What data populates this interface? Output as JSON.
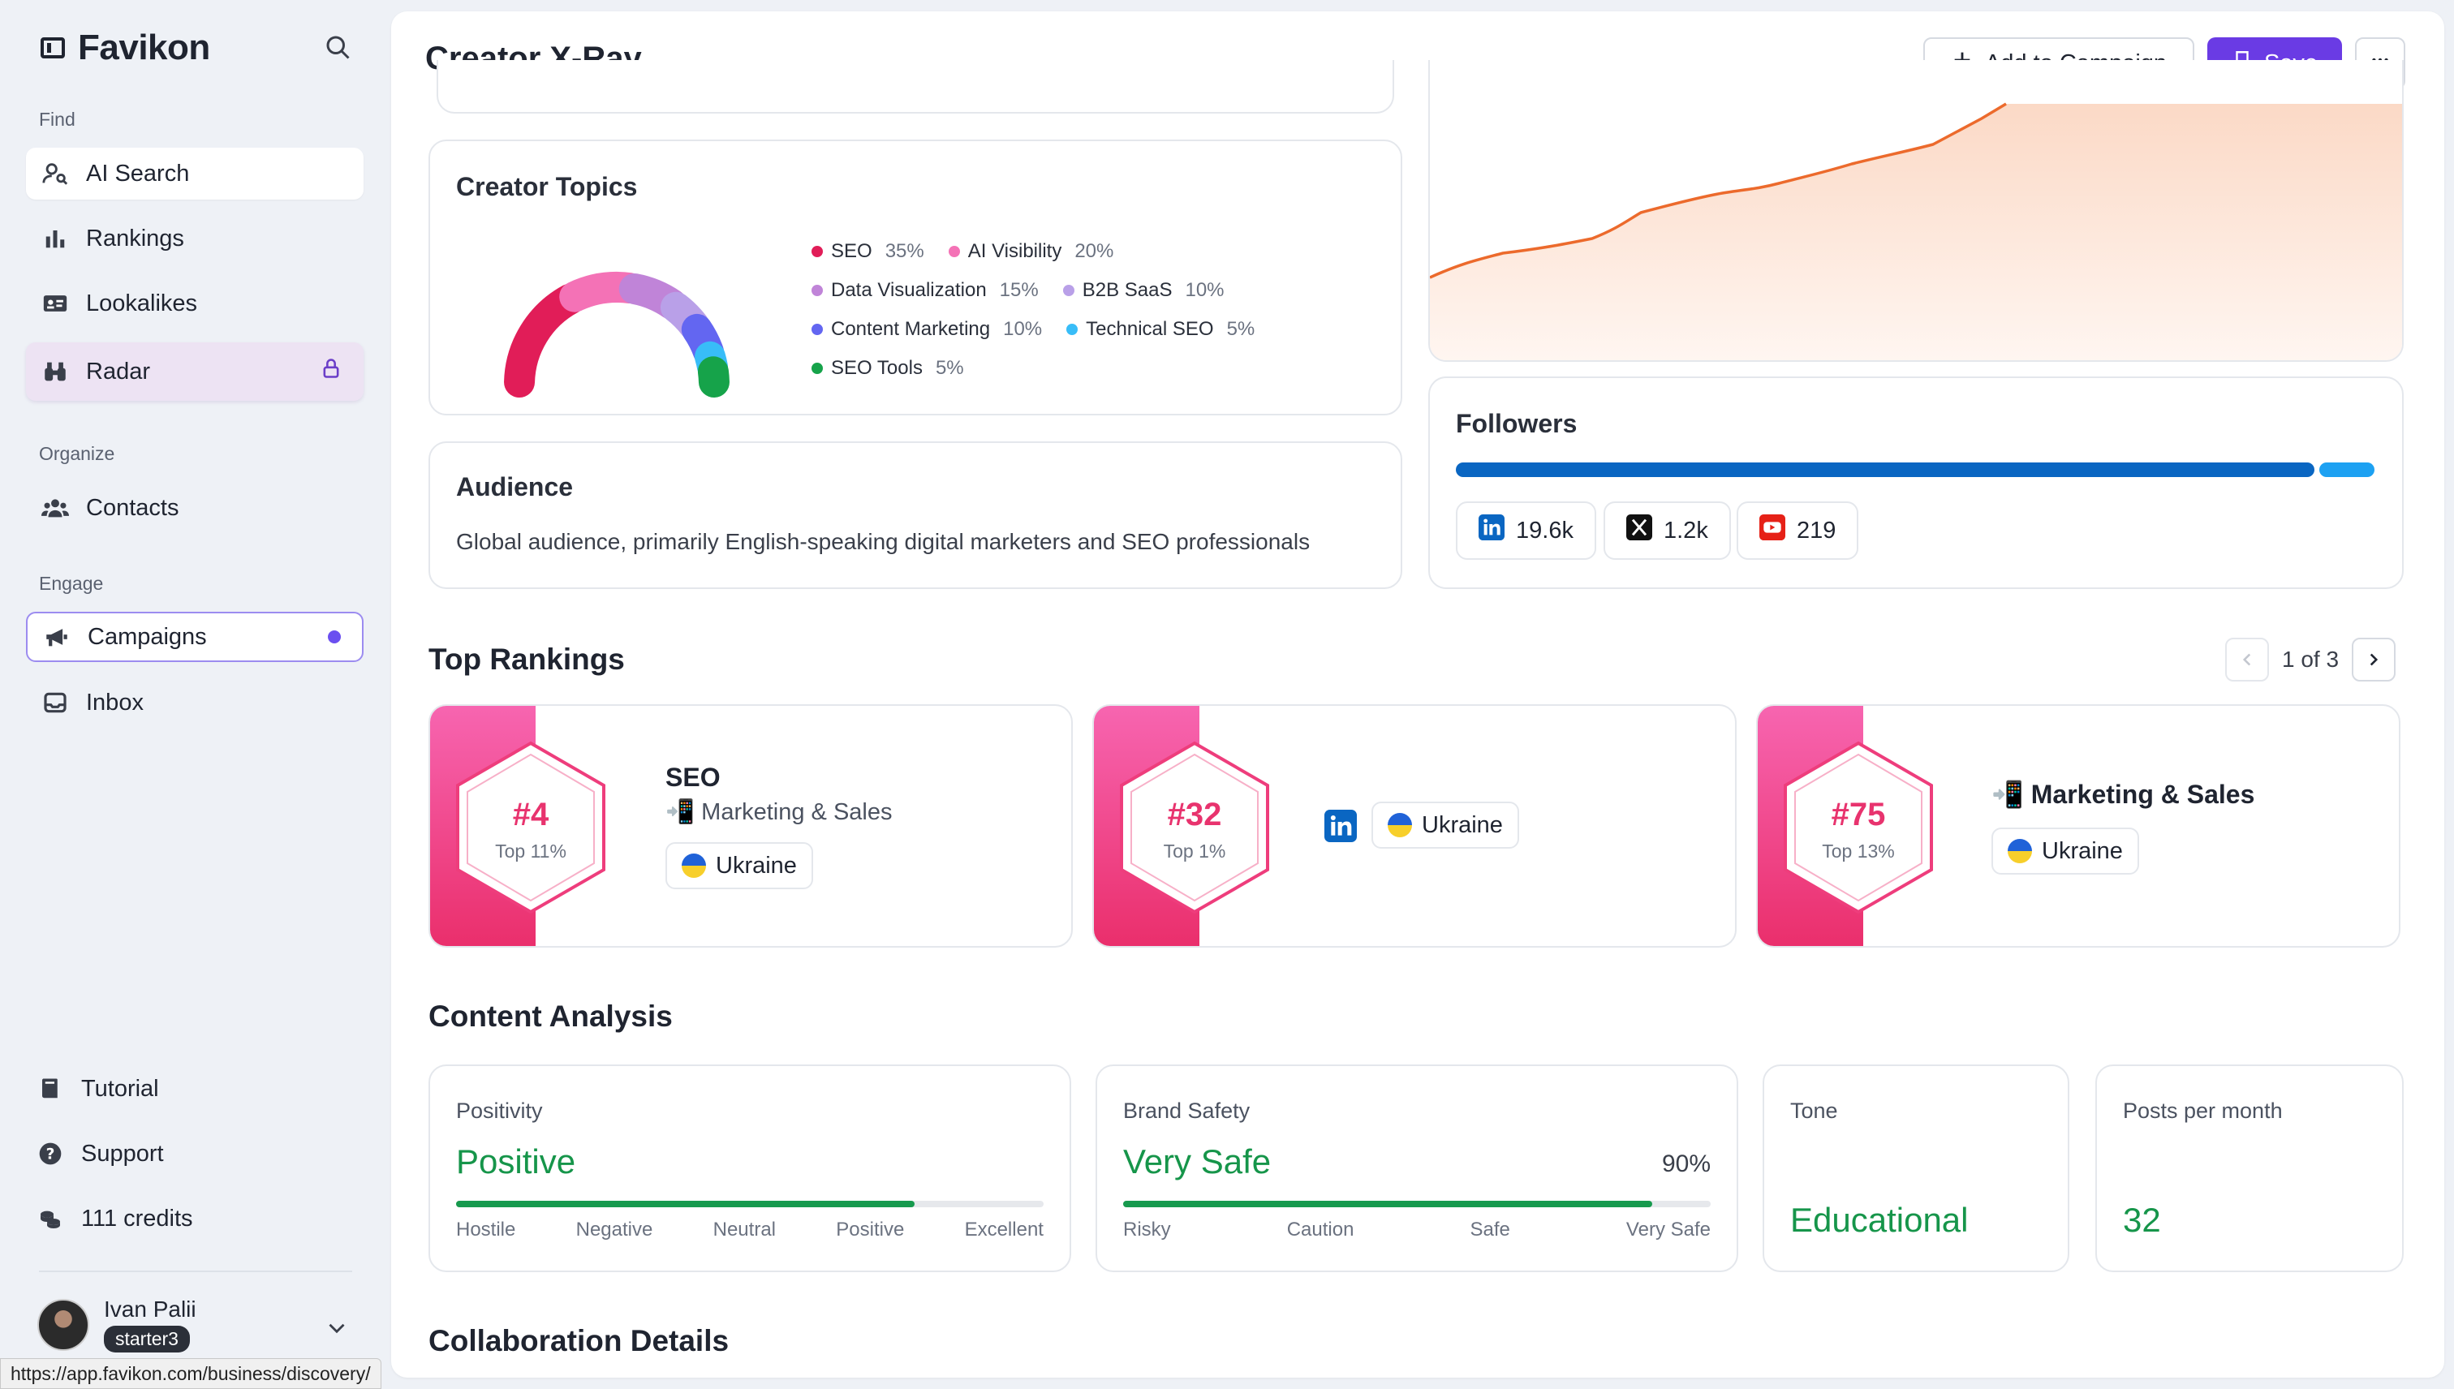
{
  "sidebar": {
    "brand": "Favikon",
    "sections": {
      "find": "Find",
      "organize": "Organize",
      "engage": "Engage"
    },
    "items": {
      "ai_search": "AI Search",
      "rankings": "Rankings",
      "lookalikes": "Lookalikes",
      "radar": "Radar",
      "contacts": "Contacts",
      "campaigns": "Campaigns",
      "inbox": "Inbox"
    },
    "bottom": {
      "tutorial": "Tutorial",
      "support": "Support",
      "credits": "111 credits"
    },
    "profile": {
      "name": "Ivan Palii",
      "plan": "starter3"
    }
  },
  "status_bar_url": "https://app.favikon.com/business/discovery/",
  "header": {
    "title": "Creator X-Ray",
    "add_to_campaign": "Add to Campaign",
    "save": "Save"
  },
  "topics": {
    "title": "Creator Topics",
    "items": [
      {
        "name": "SEO",
        "pct": "35%",
        "value": 35,
        "color": "#e11d58"
      },
      {
        "name": "AI Visibility",
        "pct": "20%",
        "value": 20,
        "color": "#f472b6"
      },
      {
        "name": "Data Visualization",
        "pct": "15%",
        "value": 15,
        "color": "#c084d8"
      },
      {
        "name": "B2B SaaS",
        "pct": "10%",
        "value": 10,
        "color": "#b9a0e8"
      },
      {
        "name": "Content Marketing",
        "pct": "10%",
        "value": 10,
        "color": "#6366f1"
      },
      {
        "name": "Technical SEO",
        "pct": "5%",
        "value": 5,
        "color": "#38bdf8"
      },
      {
        "name": "SEO Tools",
        "pct": "5%",
        "value": 5,
        "color": "#16a34a"
      }
    ]
  },
  "audience": {
    "title": "Audience",
    "text": "Global audience, primarily English-speaking digital marketers and SEO professionals"
  },
  "followers": {
    "title": "Followers",
    "split": [
      0.94,
      0.06
    ],
    "colors": [
      "#0a66c2",
      "#1da1f2"
    ],
    "linkedin": "19.6k",
    "x": "1.2k",
    "youtube": "219"
  },
  "rankings": {
    "title": "Top Rankings",
    "pager": "1 of 3",
    "cards": [
      {
        "rank": "#4",
        "top": "Top 11%",
        "title": "SEO",
        "subtitle": "📲 Marketing & Sales",
        "country": "Ukraine"
      },
      {
        "rank": "#32",
        "top": "Top 1%",
        "country": "Ukraine"
      },
      {
        "rank": "#75",
        "top": "Top 13%",
        "title": "📲 Marketing & Sales",
        "country": "Ukraine"
      }
    ]
  },
  "content_analysis": {
    "title": "Content Analysis",
    "positivity": {
      "label": "Positivity",
      "value": "Positive",
      "level": 0.78,
      "scale": [
        "Hostile",
        "Negative",
        "Neutral",
        "Positive",
        "Excellent"
      ]
    },
    "brand_safety": {
      "label": "Brand Safety",
      "value": "Very Safe",
      "percent": "90%",
      "level": 0.9,
      "scale": [
        "Risky",
        "Caution",
        "Safe",
        "Very Safe"
      ]
    },
    "tone": {
      "label": "Tone",
      "value": "Educational"
    },
    "posts": {
      "label": "Posts per month",
      "value": "32"
    }
  },
  "collaboration": {
    "title": "Collaboration Details"
  },
  "colors": {
    "accent": "#6a3be4",
    "positive": "#16954a",
    "rank_pink": "#e8336e",
    "trend": "#ec6a2c"
  }
}
